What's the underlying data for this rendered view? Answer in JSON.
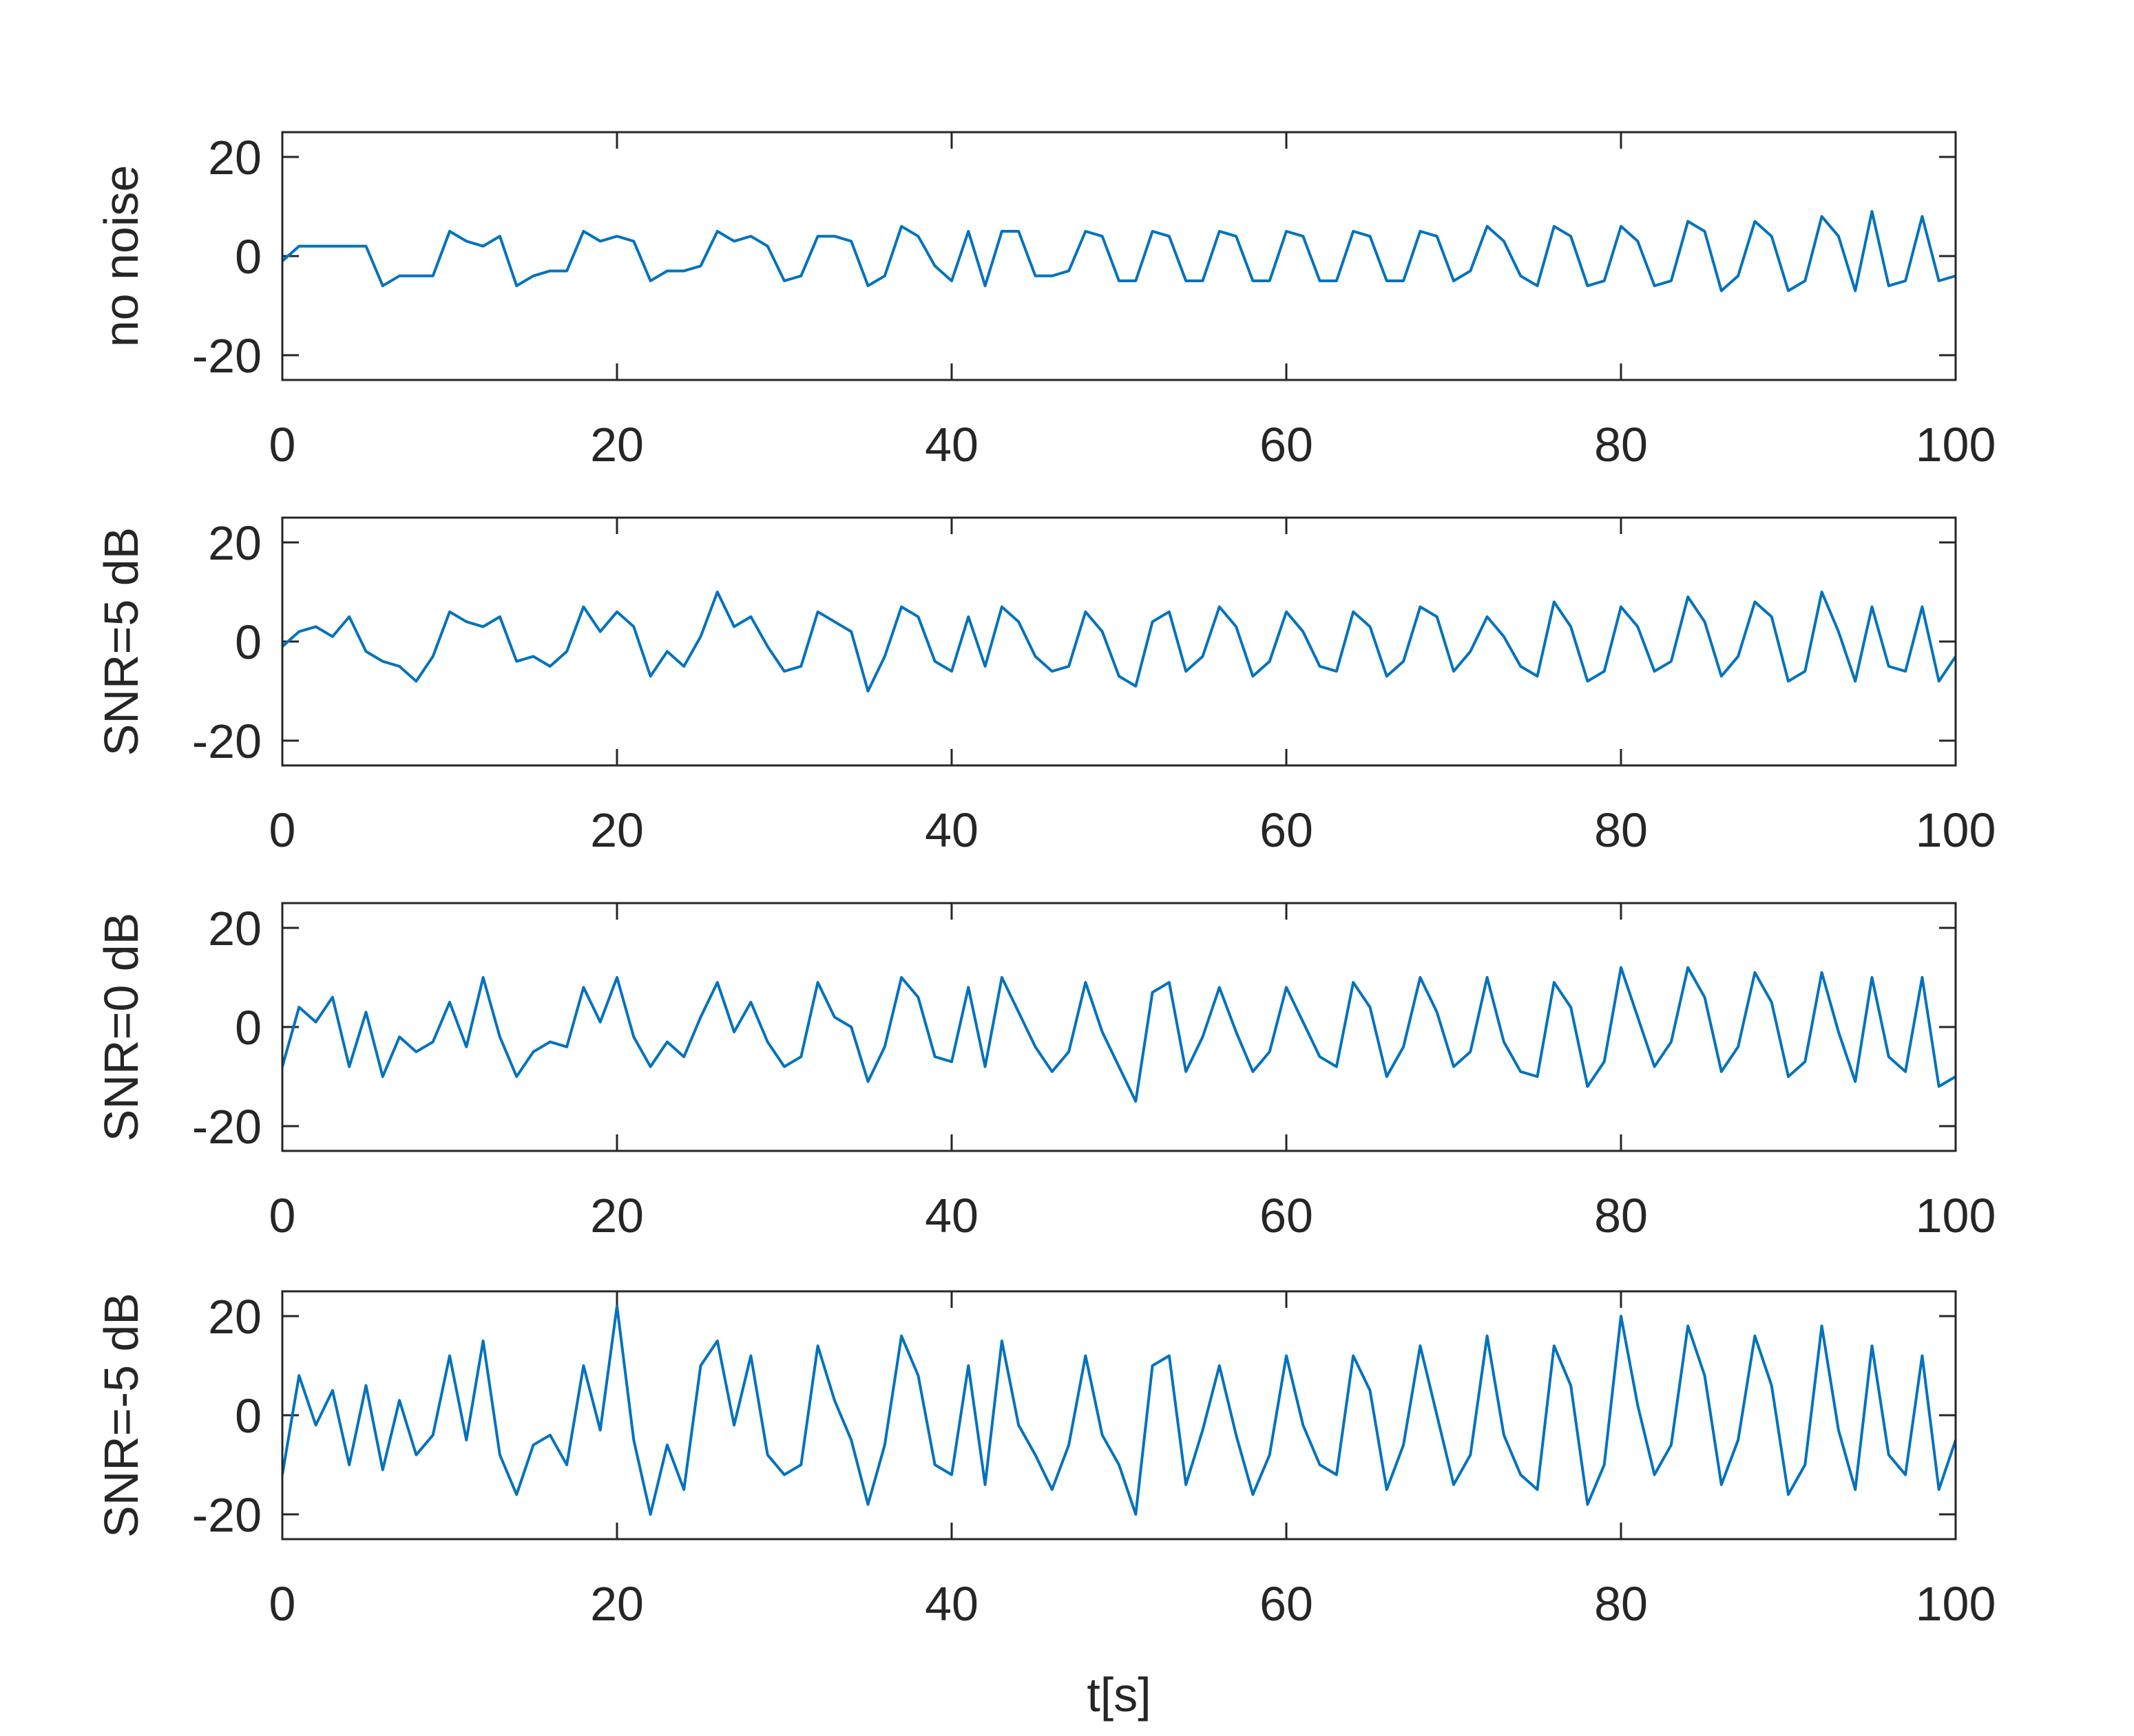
{
  "chart_data": [
    {
      "type": "line",
      "ylabel": "no noise",
      "color": "#0072bd",
      "x": [
        0,
        1,
        2,
        3,
        4,
        5,
        6,
        7,
        8,
        9,
        10,
        11,
        12,
        13,
        14,
        15,
        16,
        17,
        18,
        19,
        20,
        21,
        22,
        23,
        24,
        25,
        26,
        27,
        28,
        29,
        30,
        31,
        32,
        33,
        34,
        35,
        36,
        37,
        38,
        39,
        40,
        41,
        42,
        43,
        44,
        45,
        46,
        47,
        48,
        49,
        50,
        51,
        52,
        53,
        54,
        55,
        56,
        57,
        58,
        59,
        60,
        61,
        62,
        63,
        64,
        65,
        66,
        67,
        68,
        69,
        70,
        71,
        72,
        73,
        74,
        75,
        76,
        77,
        78,
        79,
        80,
        81,
        82,
        83,
        84,
        85,
        86,
        87,
        88,
        89,
        90,
        91,
        92,
        93,
        94,
        95,
        96,
        97,
        98,
        99,
        100
      ],
      "values": [
        -1,
        2,
        2,
        2,
        2,
        2,
        -6,
        -4,
        -4,
        -4,
        5,
        3,
        2,
        4,
        -6,
        -4,
        -3,
        -3,
        5,
        3,
        4,
        3,
        -5,
        -3,
        -3,
        -2,
        5,
        3,
        4,
        2,
        -5,
        -4,
        4,
        4,
        3,
        -6,
        -4,
        6,
        4,
        -2,
        -5,
        5,
        -6,
        5,
        5,
        -4,
        -4,
        -3,
        5,
        4,
        -5,
        -5,
        5,
        4,
        -5,
        -5,
        5,
        4,
        -5,
        -5,
        5,
        4,
        -5,
        -5,
        5,
        4,
        -5,
        -5,
        5,
        4,
        -5,
        -3,
        6,
        3,
        -4,
        -6,
        6,
        4,
        -6,
        -5,
        6,
        3,
        -6,
        -5,
        7,
        5,
        -7,
        -4,
        7,
        4,
        -7,
        -5,
        8,
        4,
        -7,
        9,
        -6,
        -5,
        8,
        -5,
        -4
      ],
      "xlim": [
        0,
        100
      ],
      "xticks": [
        0,
        20,
        40,
        60,
        80,
        100
      ],
      "ylim": [
        -25,
        25
      ],
      "yticks": [
        -20,
        0,
        20
      ]
    },
    {
      "type": "line",
      "ylabel": "SNR=5 dB",
      "color": "#0072bd",
      "x": [
        0,
        1,
        2,
        3,
        4,
        5,
        6,
        7,
        8,
        9,
        10,
        11,
        12,
        13,
        14,
        15,
        16,
        17,
        18,
        19,
        20,
        21,
        22,
        23,
        24,
        25,
        26,
        27,
        28,
        29,
        30,
        31,
        32,
        33,
        34,
        35,
        36,
        37,
        38,
        39,
        40,
        41,
        42,
        43,
        44,
        45,
        46,
        47,
        48,
        49,
        50,
        51,
        52,
        53,
        54,
        55,
        56,
        57,
        58,
        59,
        60,
        61,
        62,
        63,
        64,
        65,
        66,
        67,
        68,
        69,
        70,
        71,
        72,
        73,
        74,
        75,
        76,
        77,
        78,
        79,
        80,
        81,
        82,
        83,
        84,
        85,
        86,
        87,
        88,
        89,
        90,
        91,
        92,
        93,
        94,
        95,
        96,
        97,
        98,
        99,
        100
      ],
      "values": [
        -1,
        2,
        3,
        1,
        5,
        -2,
        -4,
        -5,
        -8,
        -3,
        6,
        4,
        3,
        5,
        -4,
        -3,
        -5,
        -2,
        7,
        2,
        6,
        3,
        -7,
        -2,
        -5,
        1,
        10,
        3,
        5,
        -1,
        -6,
        -5,
        6,
        4,
        2,
        -10,
        -3,
        7,
        5,
        -4,
        -6,
        5,
        -5,
        7,
        4,
        -3,
        -6,
        -5,
        6,
        2,
        -7,
        -9,
        4,
        6,
        -6,
        -3,
        7,
        3,
        -7,
        -4,
        6,
        2,
        -5,
        -6,
        6,
        3,
        -7,
        -4,
        7,
        5,
        -6,
        -2,
        5,
        1,
        -5,
        -7,
        8,
        3,
        -8,
        -6,
        7,
        3,
        -6,
        -4,
        9,
        4,
        -7,
        -3,
        8,
        5,
        -8,
        -6,
        10,
        2,
        -8,
        7,
        -5,
        -6,
        7,
        -8,
        -3
      ],
      "xlim": [
        0,
        100
      ],
      "xticks": [
        0,
        20,
        40,
        60,
        80,
        100
      ],
      "ylim": [
        -25,
        25
      ],
      "yticks": [
        -20,
        0,
        20
      ]
    },
    {
      "type": "line",
      "ylabel": "SNR=0 dB",
      "color": "#0072bd",
      "x": [
        0,
        1,
        2,
        3,
        4,
        5,
        6,
        7,
        8,
        9,
        10,
        11,
        12,
        13,
        14,
        15,
        16,
        17,
        18,
        19,
        20,
        21,
        22,
        23,
        24,
        25,
        26,
        27,
        28,
        29,
        30,
        31,
        32,
        33,
        34,
        35,
        36,
        37,
        38,
        39,
        40,
        41,
        42,
        43,
        44,
        45,
        46,
        47,
        48,
        49,
        50,
        51,
        52,
        53,
        54,
        55,
        56,
        57,
        58,
        59,
        60,
        61,
        62,
        63,
        64,
        65,
        66,
        67,
        68,
        69,
        70,
        71,
        72,
        73,
        74,
        75,
        76,
        77,
        78,
        79,
        80,
        81,
        82,
        83,
        84,
        85,
        86,
        87,
        88,
        89,
        90,
        91,
        92,
        93,
        94,
        95,
        96,
        97,
        98,
        99,
        100
      ],
      "values": [
        -8,
        4,
        1,
        6,
        -8,
        3,
        -10,
        -2,
        -5,
        -3,
        5,
        -4,
        10,
        -2,
        -10,
        -5,
        -3,
        -4,
        8,
        1,
        10,
        -2,
        -8,
        -3,
        -6,
        2,
        9,
        -1,
        5,
        -3,
        -8,
        -6,
        9,
        2,
        0,
        -11,
        -4,
        10,
        6,
        -6,
        -7,
        8,
        -8,
        10,
        3,
        -4,
        -9,
        -5,
        9,
        -1,
        -8,
        -15,
        7,
        9,
        -9,
        -2,
        8,
        -1,
        -9,
        -5,
        8,
        1,
        -6,
        -8,
        9,
        4,
        -10,
        -4,
        10,
        3,
        -8,
        -5,
        10,
        -3,
        -9,
        -10,
        9,
        4,
        -12,
        -7,
        12,
        2,
        -8,
        -3,
        12,
        6,
        -9,
        -4,
        11,
        5,
        -10,
        -7,
        11,
        -1,
        -11,
        10,
        -6,
        -9,
        10,
        -12,
        -10
      ],
      "xlim": [
        0,
        100
      ],
      "xticks": [
        0,
        20,
        40,
        60,
        80,
        100
      ],
      "ylim": [
        -25,
        25
      ],
      "yticks": [
        -20,
        0,
        20
      ]
    },
    {
      "type": "line",
      "ylabel": "SNR=-5 dB",
      "xlabel": "t[s]",
      "color": "#0072bd",
      "x": [
        0,
        1,
        2,
        3,
        4,
        5,
        6,
        7,
        8,
        9,
        10,
        11,
        12,
        13,
        14,
        15,
        16,
        17,
        18,
        19,
        20,
        21,
        22,
        23,
        24,
        25,
        26,
        27,
        28,
        29,
        30,
        31,
        32,
        33,
        34,
        35,
        36,
        37,
        38,
        39,
        40,
        41,
        42,
        43,
        44,
        45,
        46,
        47,
        48,
        49,
        50,
        51,
        52,
        53,
        54,
        55,
        56,
        57,
        58,
        59,
        60,
        61,
        62,
        63,
        64,
        65,
        66,
        67,
        68,
        69,
        70,
        71,
        72,
        73,
        74,
        75,
        76,
        77,
        78,
        79,
        80,
        81,
        82,
        83,
        84,
        85,
        86,
        87,
        88,
        89,
        90,
        91,
        92,
        93,
        94,
        95,
        96,
        97,
        98,
        99,
        100
      ],
      "values": [
        -12,
        8,
        -2,
        5,
        -10,
        6,
        -11,
        3,
        -8,
        -4,
        12,
        -5,
        15,
        -8,
        -16,
        -6,
        -4,
        -10,
        10,
        -3,
        22,
        -5,
        -20,
        -6,
        -15,
        10,
        15,
        -2,
        12,
        -8,
        -12,
        -10,
        14,
        3,
        -5,
        -18,
        -6,
        16,
        8,
        -10,
        -12,
        10,
        -14,
        15,
        -2,
        -8,
        -15,
        -6,
        12,
        -4,
        -10,
        -20,
        10,
        12,
        -14,
        -3,
        10,
        -4,
        -16,
        -8,
        12,
        -2,
        -10,
        -12,
        12,
        5,
        -15,
        -6,
        14,
        0,
        -14,
        -8,
        16,
        -4,
        -12,
        -15,
        14,
        6,
        -18,
        -10,
        20,
        2,
        -12,
        -6,
        18,
        8,
        -14,
        -5,
        16,
        6,
        -16,
        -10,
        18,
        -3,
        -15,
        14,
        -8,
        -12,
        12,
        -15,
        -5
      ],
      "xlim": [
        0,
        100
      ],
      "xticks": [
        0,
        20,
        40,
        60,
        80,
        100
      ],
      "ylim": [
        -25,
        25
      ],
      "yticks": [
        -20,
        0,
        20
      ]
    }
  ]
}
